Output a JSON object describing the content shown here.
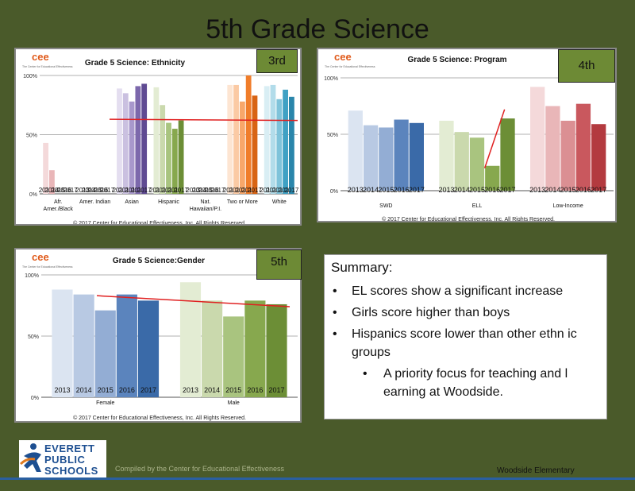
{
  "page": {
    "title": "5th Grade Science",
    "footer_compiled": "Compiled by the Center for Educational Effectiveness",
    "footer_school": "Woodside Elementary",
    "logo": {
      "line1": "EVERETT",
      "line2": "PUBLIC",
      "line3": "SCHOOLS"
    }
  },
  "colors": {
    "background": "#4a5a2a",
    "blue": [
      "#dbe4f1",
      "#b8c9e3",
      "#93add4",
      "#5b84bd",
      "#3a6aa8"
    ],
    "green": [
      "#e3ecd3",
      "#cad9ad",
      "#a9c47f",
      "#87a84e",
      "#6c8e36"
    ],
    "red": [
      "#f4d9da",
      "#e9b6b8",
      "#db8f93",
      "#c9585e",
      "#b33a3f"
    ],
    "purple": [
      "#e4def0",
      "#cac0e0",
      "#a898cc",
      "#7c68ac",
      "#5f4a92"
    ],
    "orange": [
      "#fde5d2",
      "#fbcaa4",
      "#f8a76a",
      "#f07d2a",
      "#d86414"
    ],
    "teal": [
      "#d9eef4",
      "#b2dcea",
      "#7fc3da",
      "#3fa1c4",
      "#2a86ab"
    ],
    "trend": "#e02020"
  },
  "charts": [
    {
      "id": "ethnicity",
      "grade_label": "3rd",
      "logo_text": "cee",
      "logo_sub": "The Center for Educational Effectiveness",
      "copyright": "© 2017 Center for Educational Effectiveness, Inc. All Rights Reserved."
    },
    {
      "id": "program",
      "grade_label": "4th",
      "logo_text": "cee",
      "logo_sub": "The Center for Educational Effectiveness",
      "copyright": "© 2017 Center for Educational Effectiveness, Inc. All Rights Reserved."
    },
    {
      "id": "gender",
      "grade_label": "5th",
      "logo_text": "cee",
      "logo_sub": "The Center for Educational Effectiveness",
      "copyright": "© 2017 Center for Educational Effectiveness, Inc. All Rights Reserved."
    }
  ],
  "chart_data": [
    {
      "type": "bar",
      "title": "Grade 5 Science: Ethnicity",
      "categories": [
        "Afr. Amer./Black",
        "Amer. Indian",
        "Asian",
        "Hispanic",
        "Nat. Hawaiian/P.I.",
        "Two or More",
        "White"
      ],
      "years": [
        "2013",
        "2014",
        "2015",
        "2016",
        "2017"
      ],
      "palette": [
        "red",
        "blue",
        "purple",
        "green",
        "blue",
        "orange",
        "teal"
      ],
      "series_values": [
        [
          43,
          20,
          null,
          null,
          null
        ],
        [
          null,
          null,
          null,
          null,
          null
        ],
        [
          89,
          85,
          78,
          91,
          93
        ],
        [
          90,
          75,
          60,
          55,
          62
        ],
        [
          null,
          null,
          null,
          null,
          null
        ],
        [
          92,
          92,
          78,
          100,
          83
        ],
        [
          91,
          92,
          80,
          88,
          82
        ]
      ],
      "ytick_labels": [
        "0%",
        "50%",
        "100%"
      ],
      "ylim": [
        0,
        100
      ],
      "trend_line": [
        63,
        62
      ]
    },
    {
      "type": "bar",
      "title": "Grade 5 Science: Program",
      "categories": [
        "SWD",
        "ELL",
        "Low-Income"
      ],
      "years": [
        "2013",
        "2014",
        "2015",
        "2016",
        "2017"
      ],
      "palette": [
        "blue",
        "green",
        "red"
      ],
      "series_values": [
        [
          71,
          58,
          56,
          63,
          60
        ],
        [
          62,
          52,
          47,
          22,
          64
        ],
        [
          92,
          75,
          62,
          77,
          59
        ]
      ],
      "ytick_labels": [
        "0%",
        "50%",
        "100%"
      ],
      "ylim": [
        0,
        100
      ],
      "trend_line": [
        20,
        72
      ]
    },
    {
      "type": "bar",
      "title": "Grade 5 Science:Gender",
      "categories": [
        "Female",
        "Male"
      ],
      "years": [
        "2013",
        "2014",
        "2015",
        "2016",
        "2017"
      ],
      "palette": [
        "blue",
        "green"
      ],
      "series_values": [
        [
          88,
          84,
          71,
          84,
          79
        ],
        [
          94,
          79,
          66,
          79,
          76
        ]
      ],
      "ytick_labels": [
        "0%",
        "50%",
        "100%"
      ],
      "ylim": [
        0,
        100
      ],
      "trend_line": [
        83,
        74
      ]
    }
  ],
  "summary": {
    "heading": "Summary:",
    "bullets": [
      {
        "text": "EL scores show a significant increase",
        "level": 1
      },
      {
        "text": "Girls score higher than boys",
        "level": 1
      },
      {
        "text": "Hispanics score lower than other ethn ic groups",
        "level": 1
      },
      {
        "text": "A priority focus for teaching and l earning at Woodside.",
        "level": 2
      }
    ]
  }
}
